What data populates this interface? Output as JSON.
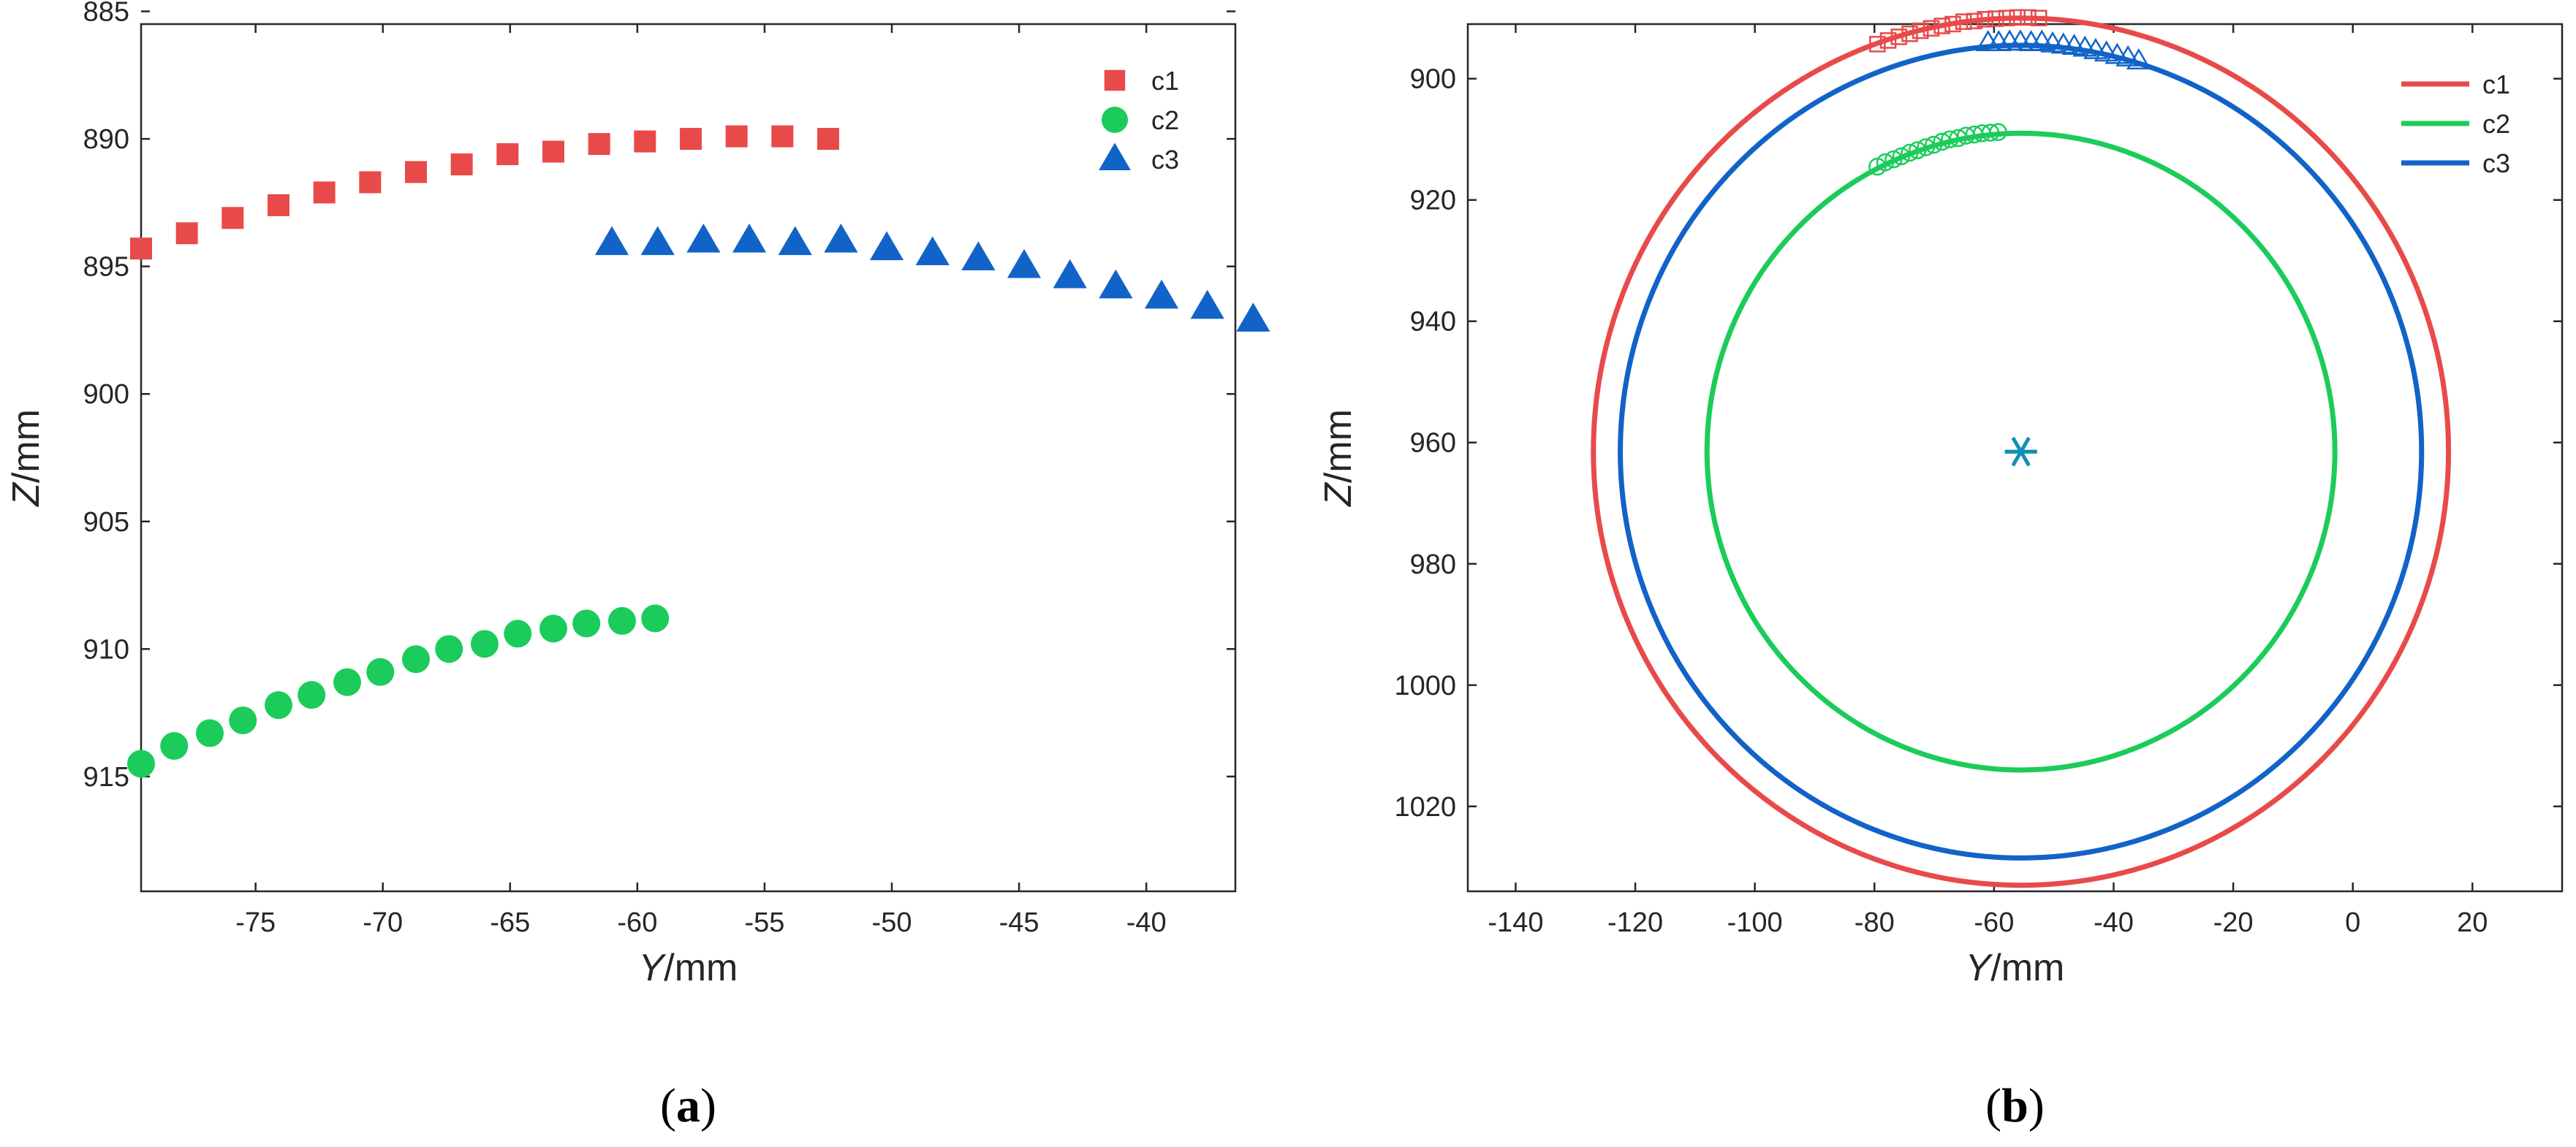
{
  "colors": {
    "c1": "#e84a4a",
    "c2": "#1ccc5a",
    "c3": "#1163c8",
    "center": "#1090b0",
    "axis": "#262626"
  },
  "chart_data": [
    {
      "id": "a",
      "panel_label": "a",
      "type": "scatter",
      "xlabel": {
        "var": "Y",
        "unit": "/mm"
      },
      "ylabel": {
        "var": "Z",
        "unit": "/mm"
      },
      "xlim": [
        -79.5,
        -36.5
      ],
      "ylim": [
        885.5,
        919.5
      ],
      "y_reversed": true,
      "xticks": [
        -75,
        -70,
        -65,
        -60,
        -55,
        -50,
        -45,
        -40
      ],
      "yticks": [
        885,
        890,
        895,
        900,
        905,
        910,
        915
      ],
      "legend_position": "top-right",
      "series": [
        {
          "name": "c1",
          "marker": "square",
          "x": [
            -79.5,
            -77.7,
            -75.9,
            -74.1,
            -72.3,
            -70.5,
            -68.7,
            -66.9,
            -65.1,
            -63.3,
            -61.5,
            -59.7,
            -57.9,
            -56.1,
            -54.3,
            -52.5
          ],
          "y": [
            894.3,
            893.7,
            893.1,
            892.6,
            892.1,
            891.7,
            891.3,
            891.0,
            890.6,
            890.5,
            890.2,
            890.1,
            890.0,
            889.9,
            889.9,
            890.0
          ]
        },
        {
          "name": "c2",
          "marker": "circle",
          "x": [
            -79.5,
            -78.2,
            -76.8,
            -75.5,
            -74.1,
            -72.8,
            -71.4,
            -70.1,
            -68.7,
            -67.4,
            -66.0,
            -64.7,
            -63.3,
            -62.0,
            -60.6,
            -59.3
          ],
          "y": [
            914.5,
            913.8,
            913.3,
            912.8,
            912.2,
            911.8,
            911.3,
            910.9,
            910.4,
            910.0,
            909.8,
            909.4,
            909.2,
            909.0,
            908.9,
            908.8
          ]
        },
        {
          "name": "c3",
          "marker": "triangle",
          "x": [
            -61.0,
            -59.2,
            -57.4,
            -55.6,
            -53.8,
            -52.0,
            -50.2,
            -48.4,
            -46.6,
            -44.8,
            -43.0,
            -41.2,
            -39.4,
            -37.6,
            -35.8
          ],
          "y": [
            894.1,
            894.1,
            894.0,
            894.0,
            894.1,
            894.0,
            894.3,
            894.5,
            894.7,
            895.0,
            895.4,
            895.8,
            896.2,
            896.6,
            897.1
          ]
        }
      ]
    },
    {
      "id": "b",
      "panel_label": "b",
      "type": "line",
      "xlabel": {
        "var": "Y",
        "unit": "/mm"
      },
      "ylabel": {
        "var": "Z",
        "unit": "/mm"
      },
      "xlim": [
        -148,
        35
      ],
      "ylim": [
        891,
        1034
      ],
      "y_reversed": true,
      "xticks": [
        -140,
        -120,
        -100,
        -80,
        -60,
        -40,
        -20,
        0,
        20
      ],
      "yticks": [
        900,
        920,
        940,
        960,
        980,
        1000,
        1020
      ],
      "legend_position": "top-right",
      "center": {
        "y": -55.5,
        "z": 961.5,
        "marker": "asterisk"
      },
      "circles": [
        {
          "name": "c1",
          "cy": -55.5,
          "cz": 961.5,
          "r": 71.5
        },
        {
          "name": "c2",
          "cy": -55.5,
          "cz": 961.5,
          "r": 52.5
        },
        {
          "name": "c3",
          "cy": -55.5,
          "cz": 961.5,
          "r": 67.0
        }
      ],
      "markers": [
        {
          "name": "c1",
          "marker": "square",
          "x": [
            -79.5,
            -77.7,
            -75.9,
            -74.1,
            -72.3,
            -70.5,
            -68.7,
            -66.9,
            -65.1,
            -63.3,
            -61.5,
            -59.7,
            -57.9,
            -56.1,
            -54.3,
            -52.5
          ],
          "y": [
            894.3,
            893.7,
            893.1,
            892.6,
            892.1,
            891.7,
            891.3,
            891.0,
            890.6,
            890.5,
            890.2,
            890.1,
            890.0,
            889.9,
            889.9,
            890.0
          ]
        },
        {
          "name": "c2",
          "marker": "circle",
          "x": [
            -79.5,
            -78.2,
            -76.8,
            -75.5,
            -74.1,
            -72.8,
            -71.4,
            -70.1,
            -68.7,
            -67.4,
            -66.0,
            -64.7,
            -63.3,
            -62.0,
            -60.6,
            -59.3
          ],
          "y": [
            914.5,
            913.8,
            913.3,
            912.8,
            912.2,
            911.8,
            911.3,
            910.9,
            910.4,
            910.0,
            909.8,
            909.4,
            909.2,
            909.0,
            908.9,
            908.8
          ]
        },
        {
          "name": "c3",
          "marker": "triangle",
          "x": [
            -61.0,
            -59.2,
            -57.4,
            -55.6,
            -53.8,
            -52.0,
            -50.2,
            -48.4,
            -46.6,
            -44.8,
            -43.0,
            -41.2,
            -39.4,
            -37.6,
            -35.8
          ],
          "y": [
            894.1,
            894.1,
            894.0,
            894.0,
            894.1,
            894.0,
            894.3,
            894.5,
            894.7,
            895.0,
            895.4,
            895.8,
            896.2,
            896.6,
            897.1
          ]
        }
      ]
    }
  ]
}
